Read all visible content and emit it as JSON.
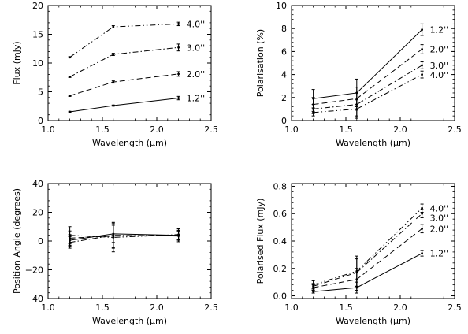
{
  "chart_data": [
    {
      "type": "line",
      "ylabel": "Flux (mJy)",
      "xlabel": "Wavelength (μm)",
      "xlim": [
        1.0,
        2.5
      ],
      "ylim": [
        0,
        20
      ],
      "xticks": [
        "1.0",
        "1.5",
        "2.0",
        "2.5"
      ],
      "yticks": [
        "0",
        "5",
        "10",
        "15",
        "20"
      ],
      "grid": false,
      "series": [
        {
          "name": "1.2''",
          "style": "solid",
          "x": [
            1.2,
            1.6,
            2.2
          ],
          "y": [
            1.5,
            2.6,
            3.9
          ],
          "err": [
            0.1,
            0.1,
            0.3
          ]
        },
        {
          "name": "2.0''",
          "style": "dash",
          "x": [
            1.2,
            1.6,
            2.2
          ],
          "y": [
            4.3,
            6.7,
            8.1
          ],
          "err": [
            0.1,
            0.2,
            0.4
          ]
        },
        {
          "name": "3.0''",
          "style": "dashdot",
          "x": [
            1.2,
            1.6,
            2.2
          ],
          "y": [
            7.6,
            11.5,
            12.7
          ],
          "err": [
            0.1,
            0.2,
            0.6
          ]
        },
        {
          "name": "4.0''",
          "style": "dashdotdot",
          "x": [
            1.2,
            1.6,
            2.2
          ],
          "y": [
            11.0,
            16.3,
            16.8
          ],
          "err": [
            0.1,
            0.2,
            0.3
          ]
        }
      ]
    },
    {
      "type": "line",
      "ylabel": "Polarisation (%)",
      "xlabel": "Wavelength (μm)",
      "xlim": [
        1.0,
        2.5
      ],
      "ylim": [
        0,
        10
      ],
      "xticks": [
        "1.0",
        "1.5",
        "2.0",
        "2.5"
      ],
      "yticks": [
        "0",
        "2",
        "4",
        "6",
        "8",
        "10"
      ],
      "grid": false,
      "series": [
        {
          "name": "1.2''",
          "style": "solid",
          "x": [
            1.2,
            1.6,
            2.2
          ],
          "y": [
            1.9,
            2.4,
            7.9
          ],
          "err": [
            0.8,
            1.2,
            0.5
          ]
        },
        {
          "name": "2.0''",
          "style": "dash",
          "x": [
            1.2,
            1.6,
            2.2
          ],
          "y": [
            1.4,
            1.9,
            6.2
          ],
          "err": [
            0.6,
            1.0,
            0.4
          ]
        },
        {
          "name": "3.0''",
          "style": "dashdot",
          "x": [
            1.2,
            1.6,
            2.2
          ],
          "y": [
            1.0,
            1.4,
            4.8
          ],
          "err": [
            0.4,
            1.0,
            0.3
          ]
        },
        {
          "name": "4.0''",
          "style": "dashdotdot",
          "x": [
            1.2,
            1.6,
            2.2
          ],
          "y": [
            0.7,
            1.0,
            4.0
          ],
          "err": [
            0.3,
            0.8,
            0.3
          ]
        }
      ]
    },
    {
      "type": "line",
      "ylabel": "Position Angle (degrees)",
      "xlabel": "Wavelength (μm)",
      "xlim": [
        1.0,
        2.5
      ],
      "ylim": [
        -40,
        40
      ],
      "xticks": [
        "1.0",
        "1.5",
        "2.0",
        "2.5"
      ],
      "yticks": [
        "−40",
        "−20",
        "0",
        "20",
        "40"
      ],
      "grid": false,
      "series": [
        {
          "style": "solid",
          "x": [
            1.2,
            1.6,
            2.2
          ],
          "y": [
            0.5,
            5.0,
            4.0
          ],
          "err": [
            4,
            6,
            3
          ]
        },
        {
          "style": "dash",
          "x": [
            1.2,
            1.6,
            2.2
          ],
          "y": [
            2.0,
            3.5,
            4.0
          ],
          "err": [
            5,
            8,
            3
          ]
        },
        {
          "style": "dashdot",
          "x": [
            1.2,
            1.6,
            2.2
          ],
          "y": [
            -1.0,
            4.0,
            3.5
          ],
          "err": [
            4,
            9,
            4
          ]
        },
        {
          "style": "dashdotdot",
          "x": [
            1.2,
            1.6,
            2.2
          ],
          "y": [
            4.0,
            2.5,
            4.5
          ],
          "err": [
            6,
            10,
            4
          ]
        }
      ]
    },
    {
      "type": "line",
      "ylabel": "Polarised Flux (mJy)",
      "xlabel": "Wavelength (μm)",
      "xlim": [
        1.0,
        2.5
      ],
      "ylim": [
        -0.02,
        0.82
      ],
      "xticks": [
        "1.0",
        "1.5",
        "2.0",
        "2.5"
      ],
      "yticks": [
        "0.0",
        "0.2",
        "0.4",
        "0.6",
        "0.8"
      ],
      "grid": false,
      "series": [
        {
          "name": "1.2''",
          "style": "solid",
          "x": [
            1.2,
            1.6,
            2.2
          ],
          "y": [
            0.03,
            0.06,
            0.31
          ],
          "err": [
            0.01,
            0.04,
            0.02
          ]
        },
        {
          "name": "2.0''",
          "style": "dash",
          "x": [
            1.2,
            1.6,
            2.2
          ],
          "y": [
            0.06,
            0.12,
            0.49
          ],
          "err": [
            0.02,
            0.08,
            0.03
          ]
        },
        {
          "name": "3.0''",
          "style": "dashdot",
          "x": [
            1.2,
            1.6,
            2.2
          ],
          "y": [
            0.07,
            0.17,
            0.6
          ],
          "err": [
            0.02,
            0.1,
            0.03
          ]
        },
        {
          "name": "4.0''",
          "style": "dashdotdot",
          "x": [
            1.2,
            1.6,
            2.2
          ],
          "y": [
            0.08,
            0.18,
            0.64
          ],
          "err": [
            0.03,
            0.11,
            0.03
          ]
        }
      ]
    }
  ]
}
